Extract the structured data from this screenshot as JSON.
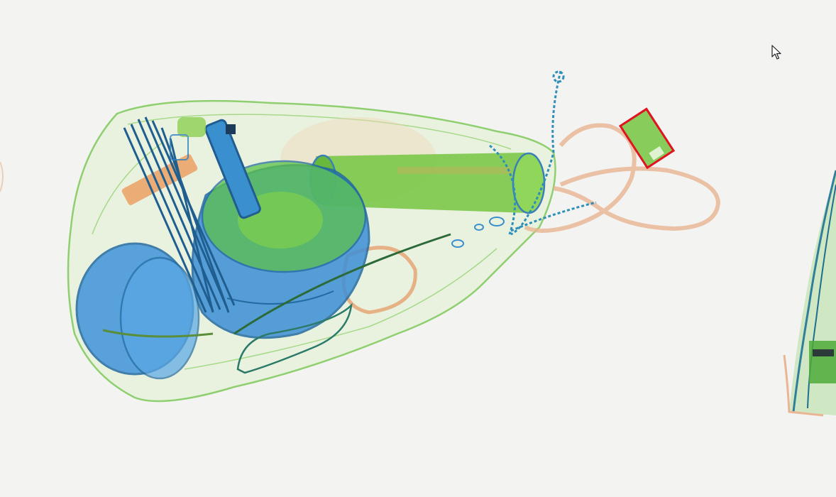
{
  "colors": {
    "background": "#f3f3f2",
    "organic": "#e8a068",
    "mixed": "#6cc040",
    "inorganic": "#2f7fc0",
    "detection_box": "#e0141e"
  },
  "detections": [
    {
      "label_visible": false,
      "box_color": "#e0141e"
    }
  ],
  "icons": {
    "cursor": "mouse-pointer-icon"
  }
}
